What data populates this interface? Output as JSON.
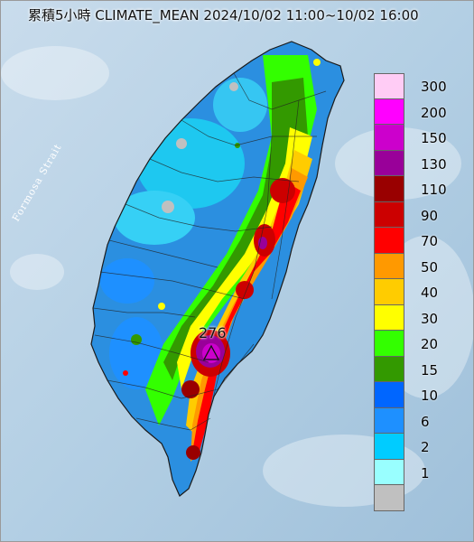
{
  "title": "累積5小時 CLIMATE_MEAN 2024/10/02 11:00~10/02 16:00",
  "map": {
    "strait_label": "Formosa Strait",
    "peak_value": "276",
    "peak_marker_icon": "triangle-station-icon",
    "sea_color": "#b7d4e8",
    "land_base_color": "#2b8fe0"
  },
  "legend": {
    "items": [
      {
        "label": "300",
        "color": "#ffccf5"
      },
      {
        "label": "200",
        "color": "#ff00ff"
      },
      {
        "label": "150",
        "color": "#cc00cc"
      },
      {
        "label": "130",
        "color": "#990099"
      },
      {
        "label": "110",
        "color": "#990000"
      },
      {
        "label": "90",
        "color": "#cc0000"
      },
      {
        "label": "70",
        "color": "#ff0000"
      },
      {
        "label": "50",
        "color": "#ff9900"
      },
      {
        "label": "40",
        "color": "#ffcc00"
      },
      {
        "label": "30",
        "color": "#ffff00"
      },
      {
        "label": "20",
        "color": "#33ff00"
      },
      {
        "label": "15",
        "color": "#339900"
      },
      {
        "label": "10",
        "color": "#0066ff"
      },
      {
        "label": "6",
        "color": "#1e90ff"
      },
      {
        "label": "2",
        "color": "#00ccff"
      },
      {
        "label": "1",
        "color": "#99ffff"
      },
      {
        "label": "",
        "color": "#c0c0c0"
      }
    ]
  }
}
